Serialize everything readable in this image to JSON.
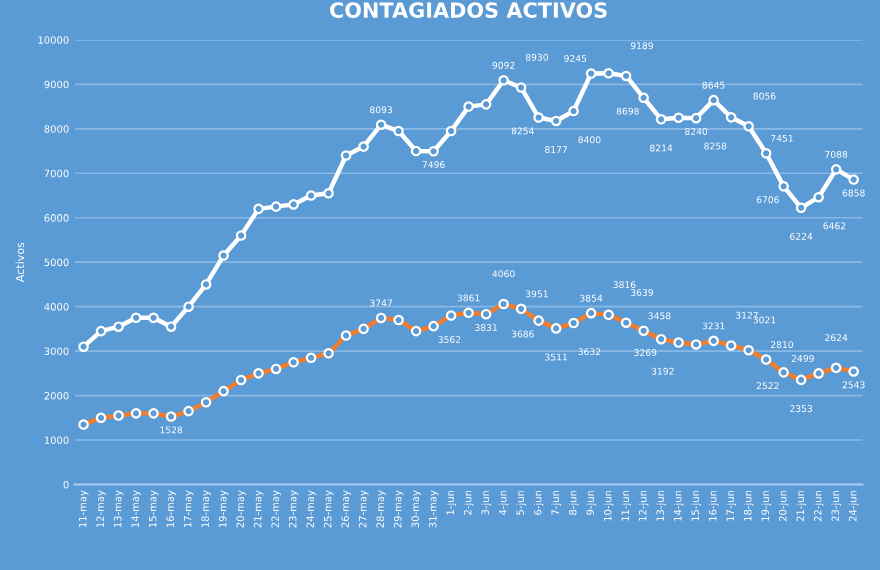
{
  "chart_data": {
    "type": "line",
    "title": "CONTAGIADOS ACTIVOS",
    "ylabel": "Activos",
    "categories": [
      "11-may",
      "12-may",
      "13-may",
      "14-may",
      "15-may",
      "16-may",
      "17-may",
      "18-may",
      "19-may",
      "20-may",
      "21-may",
      "22-may",
      "23-may",
      "24-may",
      "25-may",
      "26-may",
      "27-may",
      "28-may",
      "29-may",
      "30-may",
      "31-may",
      "1-jun",
      "2-jun",
      "3-jun",
      "4-jun",
      "5-jun",
      "6-jun",
      "7-jun",
      "8-jun",
      "9-jun",
      "10-jun",
      "11-jun",
      "12-jun",
      "13-jun",
      "14-jun",
      "15-jun",
      "16-jun",
      "17-jun",
      "18-jun",
      "19-jun",
      "20-jun",
      "21-jun",
      "22-jun",
      "23-jun",
      "24-jun"
    ],
    "series": [
      {
        "color": "#ffffff",
        "values": [
          3100,
          3450,
          3550,
          3750,
          3750,
          3550,
          4000,
          4500,
          5150,
          5600,
          6200,
          6250,
          6300,
          6500,
          6550,
          7400,
          7600,
          8093,
          7950,
          7500,
          7496,
          7950,
          8500,
          8550,
          9092,
          8930,
          8254,
          8177,
          8400,
          9245,
          9250,
          9189,
          8698,
          8214,
          8250,
          8240,
          8645,
          8258,
          8056,
          7451,
          6706,
          6224,
          6462,
          7088,
          6858
        ],
        "value_labels": [
          null,
          null,
          null,
          null,
          null,
          null,
          null,
          null,
          null,
          null,
          null,
          null,
          null,
          null,
          null,
          null,
          null,
          "8093",
          null,
          null,
          "7496",
          null,
          null,
          null,
          "9092",
          "8930",
          "8254",
          "8177",
          "8400",
          "9245",
          null,
          "9189",
          "8698",
          "8214",
          null,
          "8240",
          "8645",
          "8258",
          "8056",
          "7451",
          "6706",
          "6224",
          "6462",
          "7088",
          "6858"
        ]
      },
      {
        "color": "#ed7d31",
        "values": [
          1350,
          1500,
          1550,
          1600,
          1600,
          1528,
          1650,
          1850,
          2100,
          2350,
          2500,
          2600,
          2750,
          2850,
          2950,
          3350,
          3500,
          3747,
          3700,
          3450,
          3562,
          3800,
          3861,
          3831,
          4060,
          3951,
          3686,
          3511,
          3632,
          3854,
          3816,
          3639,
          3458,
          3269,
          3192,
          3150,
          3231,
          3127,
          3021,
          2810,
          2522,
          2353,
          2499,
          2624,
          2543
        ],
        "value_labels": [
          null,
          null,
          null,
          null,
          null,
          "1528",
          null,
          null,
          null,
          null,
          null,
          null,
          null,
          null,
          null,
          null,
          null,
          "3747",
          null,
          null,
          "3562",
          null,
          "3861",
          "3831",
          "4060",
          "3951",
          "3686",
          "3511",
          "3632",
          "3854",
          "3816",
          "3639",
          "3458",
          "3269",
          "3192",
          null,
          "3231",
          "3127",
          "3021",
          "2810",
          "2522",
          "2353",
          "2499",
          "2624",
          "2543"
        ]
      }
    ],
    "ylim": [
      0,
      10000
    ],
    "yticks": [
      0,
      1000,
      2000,
      3000,
      4000,
      5000,
      6000,
      7000,
      8000,
      9000,
      10000
    ],
    "grid": "y",
    "marker": "circle",
    "line_style": "solid",
    "legend": false
  }
}
